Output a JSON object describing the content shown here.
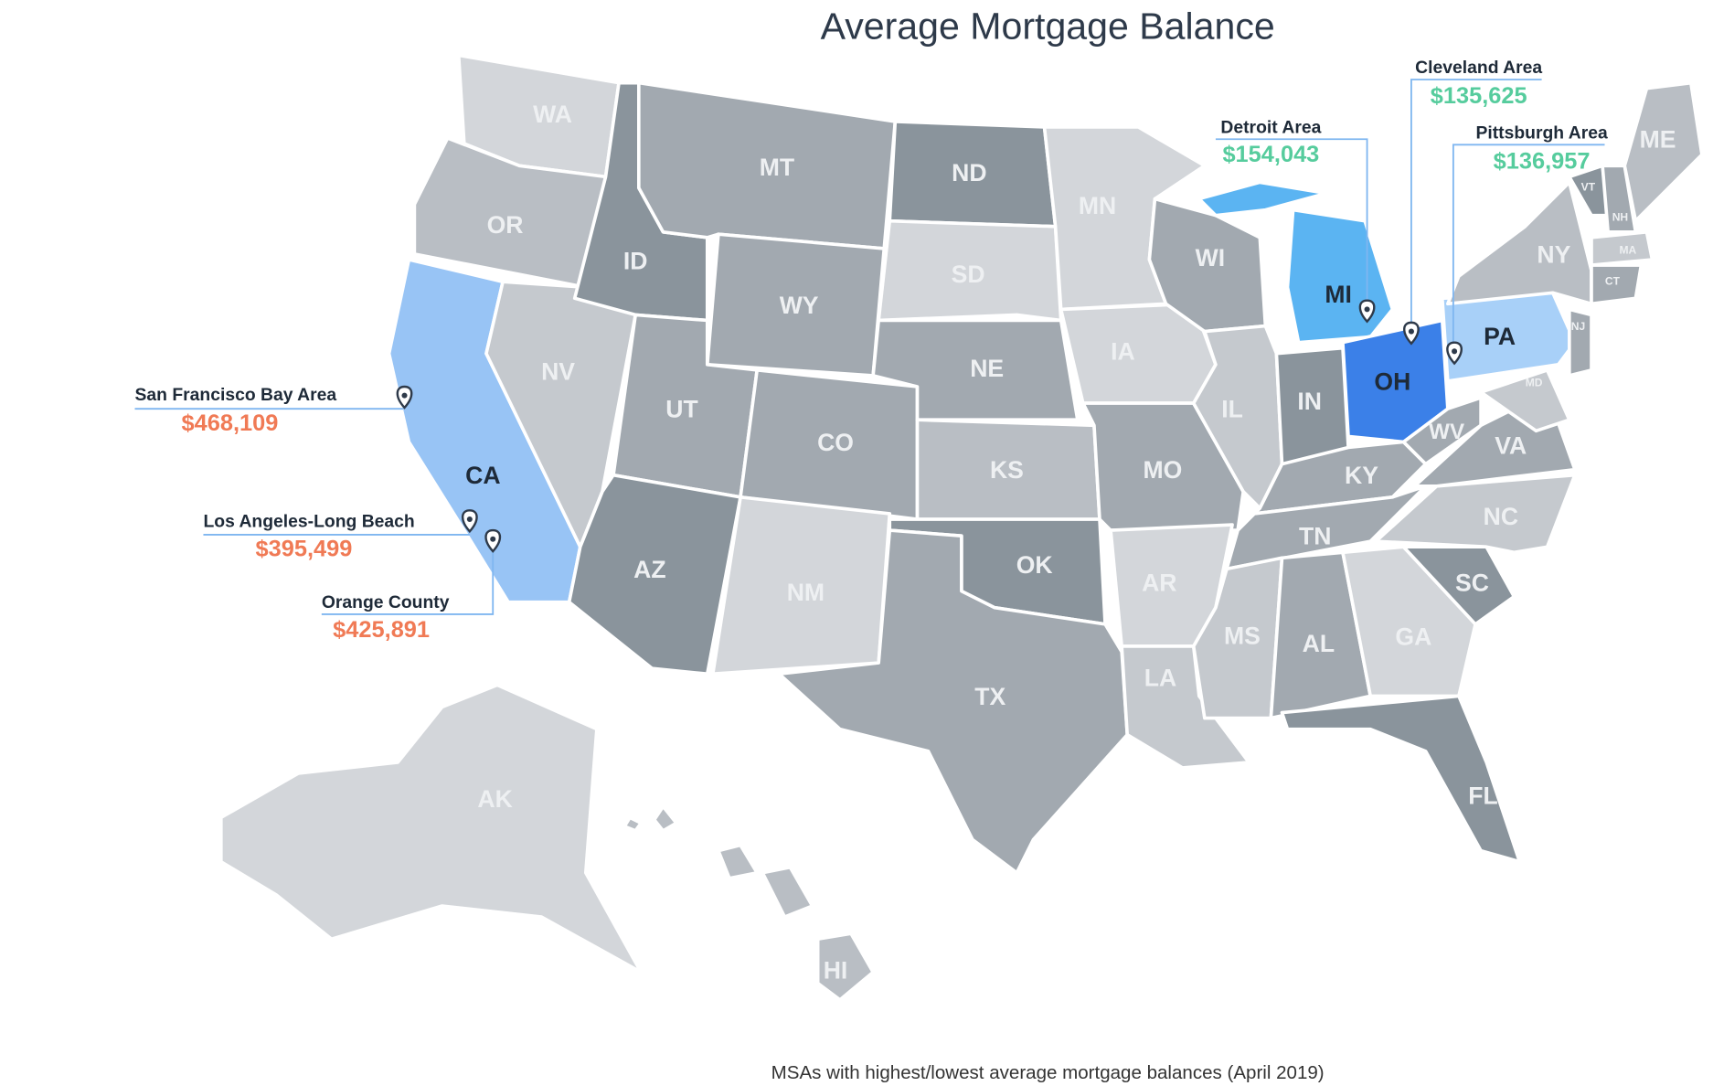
{
  "title": "Average Mortgage Balance",
  "states": [
    "WA",
    "OR",
    "CA",
    "NV",
    "ID",
    "MT",
    "WY",
    "UT",
    "CO",
    "AZ",
    "NM",
    "ND",
    "SD",
    "NE",
    "KS",
    "OK",
    "TX",
    "MN",
    "IA",
    "MO",
    "AR",
    "LA",
    "WI",
    "IL",
    "MI",
    "IN",
    "OH",
    "KY",
    "TN",
    "MS",
    "AL",
    "GA",
    "FL",
    "SC",
    "NC",
    "VA",
    "WV",
    "PA",
    "NY",
    "VT",
    "NH",
    "ME",
    "MA",
    "CT",
    "NJ",
    "MD",
    "AK",
    "HI"
  ],
  "callouts": [
    {
      "area": "San Francisco Bay Area",
      "value": "$468,109"
    },
    {
      "area": "Los Angeles-Long Beach",
      "value": "$395,499"
    },
    {
      "area": "Orange County",
      "value": "$425,891"
    },
    {
      "area": "Detroit Area",
      "value": "$154,043"
    },
    {
      "area": "Cleveland Area",
      "value": "$135,625"
    },
    {
      "area": "Pittsburgh Area",
      "value": "$136,957"
    }
  ],
  "footnote": "MSAs with highest/lowest average mortgage balances (April 2019)"
}
